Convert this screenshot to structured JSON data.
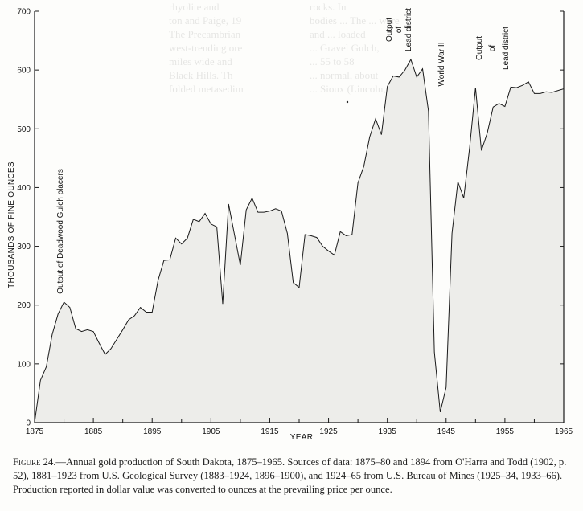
{
  "chart_data": {
    "type": "area",
    "xlabel": "YEAR",
    "ylabel": "THOUSANDS OF FINE OUNCES",
    "xlim": [
      1875,
      1965
    ],
    "ylim": [
      0,
      700
    ],
    "x_ticks": [
      "1875",
      "1885",
      "1895",
      "1905",
      "1915",
      "1925",
      "1935",
      "1945",
      "1955",
      "1965"
    ],
    "y_ticks": [
      "0",
      "100",
      "200",
      "300",
      "400",
      "500",
      "600",
      "700"
    ],
    "grid": false,
    "series": [
      {
        "x": [
          1875,
          1876,
          1877,
          1878,
          1879,
          1880,
          1881,
          1882,
          1883,
          1884,
          1885,
          1886,
          1887,
          1888,
          1889,
          1890,
          1891,
          1892,
          1893,
          1894,
          1895,
          1896,
          1897,
          1898,
          1899,
          1900,
          1901,
          1902,
          1903,
          1904,
          1905,
          1906,
          1907,
          1908,
          1909,
          1910,
          1911,
          1912,
          1913,
          1914,
          1915,
          1916,
          1917,
          1918,
          1919,
          1920,
          1921,
          1922,
          1923,
          1924,
          1925,
          1926,
          1927,
          1928,
          1929,
          1930,
          1931,
          1932,
          1933,
          1934,
          1935,
          1936,
          1937,
          1938,
          1939,
          1940,
          1941,
          1942,
          1943,
          1944,
          1945,
          1946,
          1947,
          1948,
          1949,
          1950,
          1951,
          1952,
          1953,
          1954,
          1955,
          1956,
          1957,
          1958,
          1959,
          1960,
          1961,
          1962,
          1963,
          1964,
          1965
        ],
        "values": [
          0,
          72,
          95,
          150,
          185,
          205,
          196,
          160,
          155,
          158,
          155,
          135,
          116,
          126,
          142,
          158,
          175,
          182,
          196,
          188,
          188,
          242,
          276,
          277,
          314,
          304,
          314,
          346,
          342,
          356,
          338,
          333,
          202,
          372,
          320,
          268,
          362,
          382,
          358,
          358,
          360,
          364,
          360,
          322,
          238,
          230,
          320,
          318,
          315,
          300,
          292,
          285,
          325,
          318,
          320,
          408,
          436,
          486,
          517,
          490,
          572,
          590,
          588,
          600,
          618,
          588,
          602,
          530,
          120,
          18,
          60,
          322,
          410,
          382,
          468,
          570,
          463,
          493,
          537,
          543,
          538,
          571,
          570,
          574,
          580,
          560,
          560,
          563,
          562,
          565,
          568
        ]
      }
    ],
    "annotations": [
      {
        "text": "Output of Deadwood Gulch placers",
        "year": 1880
      },
      {
        "text": "Output",
        "year": 1935
      },
      {
        "text": "of",
        "year": 1935
      },
      {
        "text": "Lead district",
        "year": 1935
      },
      {
        "text": "World War II",
        "year": 1943
      },
      {
        "text": "Output",
        "year": 1951
      },
      {
        "text": "of",
        "year": 1951
      },
      {
        "text": "Lead district",
        "year": 1951
      }
    ]
  },
  "caption": {
    "figure_label": "Figure 24.",
    "text": "—Annual gold production of South Dakota, 1875–1965. Sources of data: 1875–80 and 1894 from O'Harra and Todd (1902, p. 52), 1881–1923 from U.S. Geological Survey (1883–1924, 1896–1900), and 1924–65 from U.S. Bureau of Mines (1925–34, 1933–66). Production reported in dollar value was converted to ounces at the prevailing price per ounce."
  },
  "background_text": {
    "left_lines": [
      "rhyolite and",
      "ton and Paige, 19",
      "The Precambrian",
      "west-trending ore",
      "miles wide and",
      "Black Hills. Th",
      "folded metasedim"
    ],
    "right_lines": [
      "rocks. In",
      "bodies ... The ... were",
      "and ... loaded",
      "... Gravel Gulch,",
      "... 55 to 58",
      "... normal, about",
      "... Sioux (Lincoln,"
    ]
  },
  "colors": {
    "fill": "#ededea",
    "line": "#1a1a1a",
    "axis": "#1a1a1a"
  }
}
